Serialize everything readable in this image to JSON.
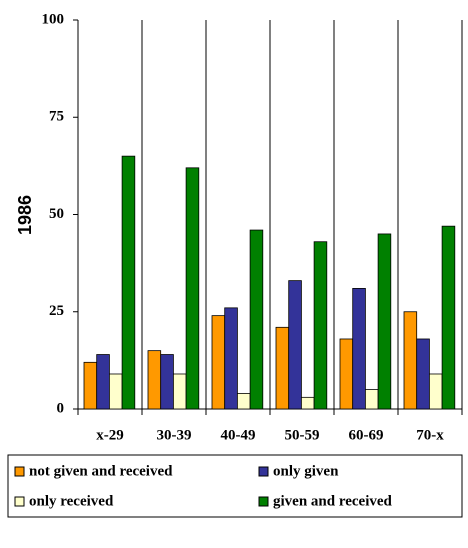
{
  "chart_data": {
    "type": "bar",
    "y_label": "1986",
    "categories": [
      "x-29",
      "30-39",
      "40-49",
      "50-59",
      "60-69",
      "70-x"
    ],
    "series": [
      {
        "name": "not given and received",
        "color": "#ff9900",
        "values": [
          12,
          15,
          24,
          21,
          18,
          25
        ]
      },
      {
        "name": "only given",
        "color": "#333399",
        "values": [
          14,
          14,
          26,
          33,
          31,
          18
        ]
      },
      {
        "name": "only received",
        "color": "#ffffcc",
        "values": [
          9,
          9,
          4,
          3,
          5,
          9
        ]
      },
      {
        "name": "given and received",
        "color": "#008000",
        "values": [
          65,
          62,
          46,
          43,
          45,
          47
        ]
      }
    ],
    "ylim": [
      0,
      100
    ],
    "yticks": [
      0,
      25,
      50,
      75,
      100
    ],
    "legend": "bottom"
  }
}
